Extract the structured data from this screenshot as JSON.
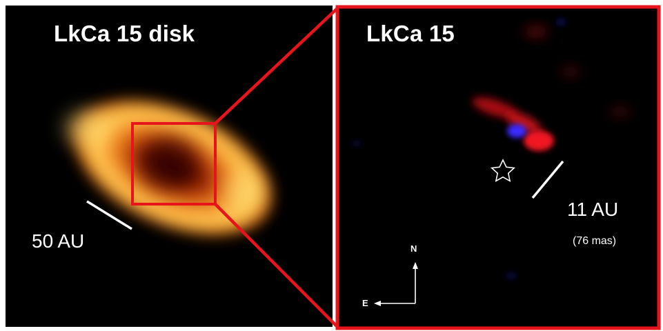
{
  "left_panel": {
    "title": "LkCa 15 disk",
    "scale_label": "50 AU"
  },
  "right_panel": {
    "title": "LkCa 15",
    "scale_label": "11 AU",
    "scale_sublabel": "(76 mas)",
    "compass": {
      "north": "N",
      "east": "E"
    }
  },
  "colors": {
    "frame": "#e8141b",
    "disk_outer": "#f59a2a",
    "disk_bright": "#ffe066",
    "red_emission": "#e0161e",
    "blue_emission": "#2a2cf0"
  },
  "icons": {
    "star_marker": "star-outline-icon"
  }
}
